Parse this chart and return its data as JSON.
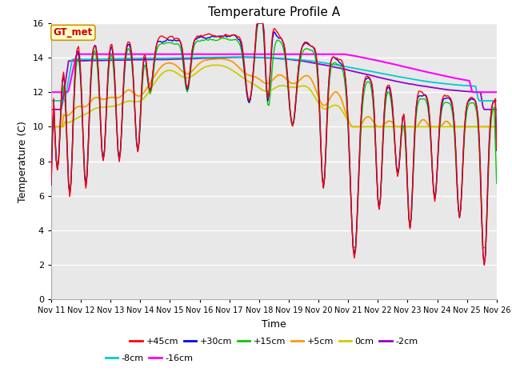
{
  "title": "Temperature Profile A",
  "xlabel": "Time",
  "ylabel": "Temperature (C)",
  "ylim": [
    0,
    16
  ],
  "xlim": [
    0,
    360
  ],
  "bg_color": "#e8e8e8",
  "fig_color": "#ffffff",
  "annotation_text": "GT_met",
  "annotation_bg": "#ffffcc",
  "annotation_border": "#cc9900",
  "annotation_text_color": "#cc0000",
  "series_colors": {
    "+45cm": "#ff0000",
    "+30cm": "#0000ff",
    "+15cm": "#00cc00",
    "+5cm": "#ff9900",
    "0cm": "#cccc00",
    "-2cm": "#9900cc",
    "-8cm": "#00cccc",
    "-16cm": "#ff00ff"
  },
  "tick_labels": [
    "Nov 11",
    "Nov 12",
    "Nov 13",
    "Nov 14",
    "Nov 15",
    "Nov 16",
    "Nov 17",
    "Nov 18",
    "Nov 19",
    "Nov 20",
    "Nov 21",
    "Nov 22",
    "Nov 23",
    "Nov 24",
    "Nov 25",
    "Nov 26"
  ],
  "tick_positions": [
    0,
    24,
    48,
    72,
    96,
    120,
    144,
    168,
    192,
    216,
    240,
    264,
    288,
    312,
    336,
    360
  ],
  "yticks": [
    0,
    2,
    4,
    6,
    8,
    10,
    12,
    14,
    16
  ]
}
